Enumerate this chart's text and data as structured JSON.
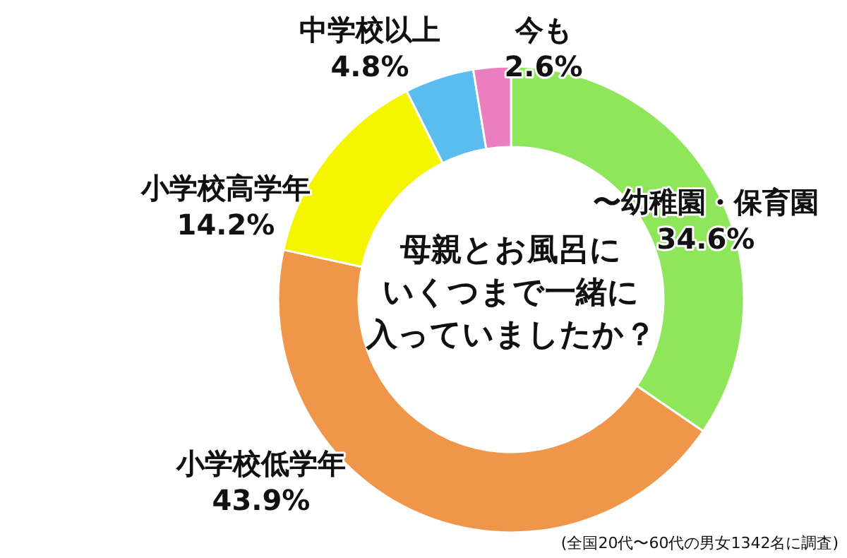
{
  "chart_data": {
    "type": "donut",
    "title": "母親とお風呂にいくつまで一緒に入っていましたか？",
    "categories": [
      "〜幼稚園・保育園",
      "小学校低学年",
      "小学校高学年",
      "中学校以上",
      "今も"
    ],
    "values": [
      34.6,
      43.9,
      14.2,
      4.8,
      2.6
    ],
    "colors": [
      "#8ee65a",
      "#f0964a",
      "#f5f500",
      "#5bbcf0",
      "#ea7ec0"
    ],
    "value_labels": [
      "34.6%",
      "43.9%",
      "14.2%",
      "4.8%",
      "2.6%"
    ],
    "annotations": [
      "(全国20代〜60代の男女1342名に調査)"
    ]
  }
}
